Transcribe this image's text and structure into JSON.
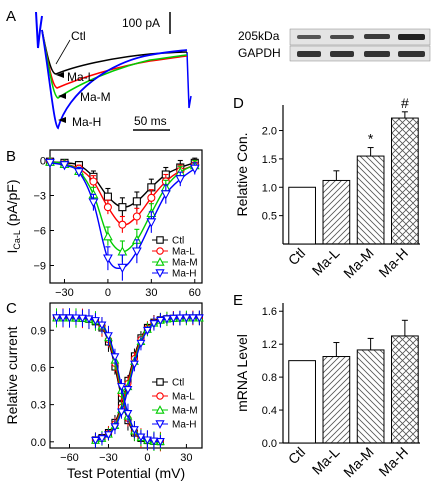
{
  "panel_letters": [
    "A",
    "B",
    "C",
    "D",
    "E"
  ],
  "panel_a": {
    "scale_current": "100 pA",
    "scale_time": "50 ms",
    "trace_labels": [
      "Ctl",
      "Ma-L",
      "Ma-M",
      "Ma-H"
    ],
    "blot_labels": [
      "205kDa",
      "GAPDH"
    ]
  },
  "colors": {
    "Ctl": "#000000",
    "Ma-L": "#ff0000",
    "Ma-M": "#00cc00",
    "Ma-H": "#0000ff"
  },
  "chart_data": [
    {
      "id": "B",
      "type": "line",
      "xlabel": "",
      "ylabel": "ICa-L (pA/pF)",
      "ylabel_main": "I",
      "ylabel_sub": "Ca-L",
      "ylabel_rest": " (pA/pF)",
      "xlim": [
        -40,
        65
      ],
      "ylim": [
        -10.5,
        0.9
      ],
      "x_ticks": [
        -30,
        0,
        30,
        60
      ],
      "y_ticks": [
        0,
        -3,
        -6,
        -9
      ],
      "x": [
        -40,
        -30,
        -20,
        -10,
        0,
        10,
        20,
        30,
        40,
        50,
        60
      ],
      "series": [
        {
          "name": "Ctl",
          "marker": "square",
          "values": [
            -0.1,
            -0.2,
            -0.4,
            -1.4,
            -3.1,
            -4.0,
            -3.5,
            -2.3,
            -1.2,
            -0.6,
            -0.2
          ],
          "err": [
            0.2,
            0.2,
            0.3,
            0.5,
            0.7,
            0.8,
            0.8,
            0.7,
            0.6,
            0.6,
            0.4
          ]
        },
        {
          "name": "Ma-L",
          "marker": "circle",
          "values": [
            -0.1,
            -0.3,
            -0.7,
            -1.8,
            -4.0,
            -5.5,
            -4.8,
            -3.2,
            -1.8,
            -0.9,
            -0.4
          ],
          "err": [
            0.2,
            0.2,
            0.3,
            0.5,
            0.6,
            0.7,
            0.7,
            0.7,
            0.6,
            0.5,
            0.4
          ]
        },
        {
          "name": "Ma-M",
          "marker": "triangle-up",
          "values": [
            -0.1,
            -0.3,
            -0.9,
            -2.9,
            -6.5,
            -7.8,
            -6.8,
            -4.5,
            -2.3,
            -1.0,
            -0.4
          ],
          "err": [
            0.2,
            0.2,
            0.3,
            0.6,
            0.8,
            0.9,
            0.9,
            0.8,
            0.6,
            0.5,
            0.4
          ]
        },
        {
          "name": "Ma-H",
          "marker": "triangle-down",
          "values": [
            -0.2,
            -0.4,
            -1.0,
            -3.6,
            -8.4,
            -9.2,
            -7.8,
            -5.3,
            -2.9,
            -1.6,
            -0.7
          ],
          "err": [
            0.2,
            0.2,
            0.4,
            0.7,
            1.0,
            1.1,
            1.0,
            0.9,
            0.8,
            0.6,
            0.5
          ]
        }
      ],
      "legend_position": "bottom-right"
    },
    {
      "id": "C",
      "type": "scatter",
      "xlabel": "Test Potential (mV)",
      "ylabel": "Relative current",
      "xlim": [
        -75,
        42
      ],
      "ylim": [
        -0.05,
        1.12
      ],
      "x_ticks": [
        -60,
        -30,
        0,
        30
      ],
      "y_ticks": [
        0.0,
        0.3,
        0.6,
        0.9
      ],
      "y_tick_labels": [
        "0.0",
        "0.3",
        "0.6",
        "0.9"
      ],
      "inactivation_x": [
        -70,
        -65,
        -60,
        -55,
        -50,
        -45,
        -40,
        -35,
        -30,
        -25,
        -20,
        -15,
        -10,
        -5,
        0,
        5,
        10
      ],
      "activation_x": [
        -40,
        -35,
        -30,
        -25,
        -20,
        -15,
        -10,
        -5,
        0,
        5,
        10,
        15,
        20,
        25,
        30,
        35,
        40
      ],
      "inactivation": {
        "v_half": -22,
        "k": 5,
        "err": 0.08
      },
      "activation": {
        "v_half": -14,
        "k": 6,
        "err": 0.06
      },
      "series": [
        {
          "name": "Ctl",
          "marker": "square"
        },
        {
          "name": "Ma-L",
          "marker": "circle"
        },
        {
          "name": "Ma-M",
          "marker": "triangle-up"
        },
        {
          "name": "Ma-H",
          "marker": "triangle-down"
        }
      ],
      "legend_position": "bottom-right"
    },
    {
      "id": "D",
      "type": "bar",
      "xlabel": "",
      "ylabel": "Relative Con.",
      "categories": [
        "Ctl",
        "Ma-L",
        "Ma-M",
        "Ma-H"
      ],
      "values": [
        1.0,
        1.12,
        1.55,
        2.22
      ],
      "err": [
        0.0,
        0.17,
        0.15,
        0.11
      ],
      "annotations": [
        "",
        "",
        "*",
        "#"
      ],
      "ylim": [
        0,
        2.45
      ],
      "y_ticks": [
        0.5,
        1.0,
        1.5,
        2.0
      ],
      "y_tick_labels": [
        "0.5",
        "1.0",
        "1.5",
        "2.0"
      ],
      "patterns": [
        "none",
        "diag-left",
        "diag-right",
        "cross"
      ]
    },
    {
      "id": "E",
      "type": "bar",
      "xlabel": "",
      "ylabel": "mRNA Level",
      "categories": [
        "Ctl",
        "Ma-L",
        "Ma-M",
        "Ma-H"
      ],
      "values": [
        1.0,
        1.05,
        1.13,
        1.3
      ],
      "err": [
        0.0,
        0.17,
        0.14,
        0.19
      ],
      "ylim": [
        0.0,
        1.7
      ],
      "y_ticks": [
        0.0,
        0.4,
        0.8,
        1.2,
        1.6
      ],
      "y_tick_labels": [
        "0.0",
        "0.4",
        "0.8",
        "1.2",
        "1.6"
      ],
      "patterns": [
        "none",
        "diag-left",
        "diag-right",
        "cross"
      ]
    }
  ]
}
